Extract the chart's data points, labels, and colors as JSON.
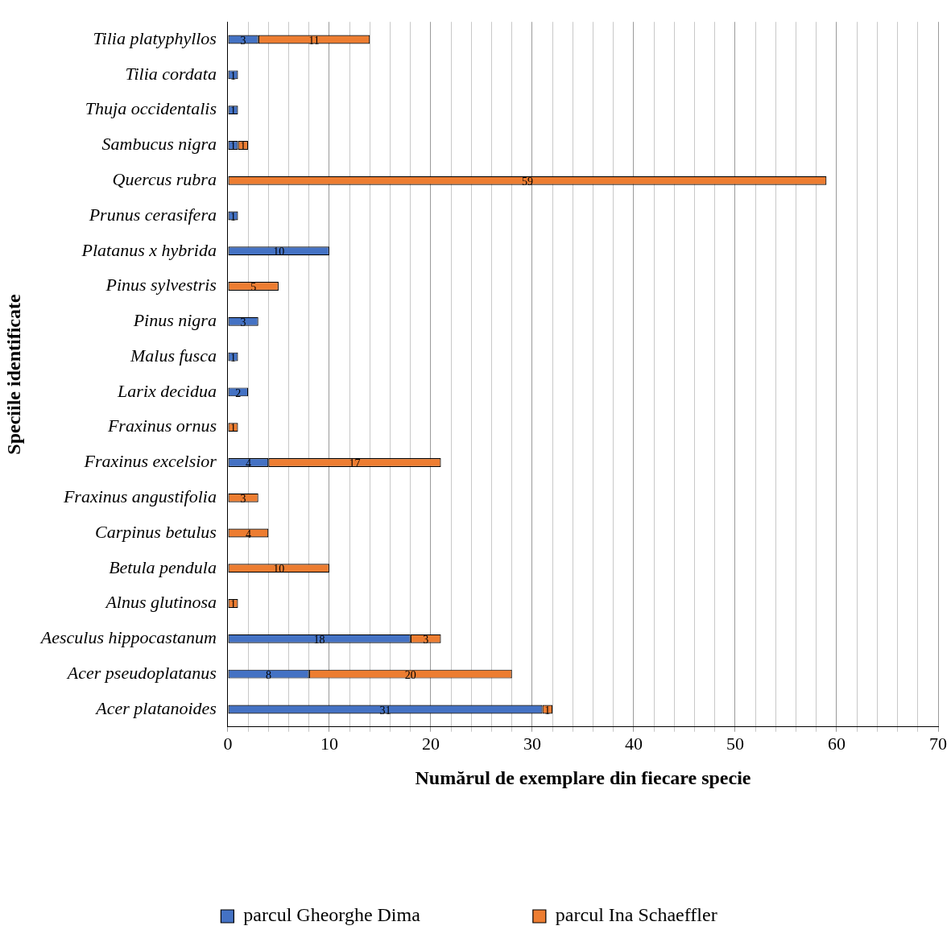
{
  "chart_data": {
    "type": "bar",
    "orientation": "horizontal",
    "stacked": true,
    "categories": [
      "Tilia platyphyllos",
      "Tilia cordata",
      "Thuja occidentalis",
      "Sambucus nigra",
      "Quercus rubra",
      "Prunus cerasifera",
      "Platanus x hybrida",
      "Pinus sylvestris",
      "Pinus nigra",
      "Malus fusca",
      "Larix decidua",
      "Fraxinus ornus",
      "Fraxinus excelsior",
      "Fraxinus angustifolia",
      "Carpinus betulus",
      "Betula pendula",
      "Alnus glutinosa",
      "Aesculus hippocastanum",
      "Acer pseudoplatanus",
      "Acer platanoides"
    ],
    "series": [
      {
        "name": "parcul Gheorghe Dima",
        "color": "#4472c4",
        "values": [
          3,
          1,
          1,
          1,
          null,
          1,
          10,
          null,
          3,
          1,
          2,
          null,
          4,
          null,
          null,
          null,
          null,
          18,
          8,
          31
        ]
      },
      {
        "name": "parcul Ina Schaeffler",
        "color": "#ed7d31",
        "values": [
          11,
          null,
          null,
          1,
          59,
          null,
          null,
          5,
          null,
          null,
          null,
          1,
          17,
          3,
          4,
          10,
          1,
          3,
          20,
          1
        ]
      }
    ],
    "xlabel": "Numărul de exemplare din fiecare specie",
    "ylabel": "Speciile identificate",
    "xlim": [
      0,
      70
    ],
    "xticks": [
      0,
      {
        "value": 2,
        "label": null
      },
      {
        "value": 4,
        "label": null
      },
      {
        "value": 6,
        "label": null
      },
      {
        "value": 8,
        "label": null
      },
      10,
      {
        "value": 12,
        "label": null
      },
      {
        "value": 14,
        "label": null
      },
      {
        "value": 16,
        "label": null
      },
      {
        "value": 18,
        "label": null
      },
      20,
      {
        "value": 22,
        "label": null
      },
      {
        "value": 24,
        "label": null
      },
      {
        "value": 26,
        "label": null
      },
      {
        "value": 28,
        "label": null
      },
      30,
      {
        "value": 32,
        "label": null
      },
      {
        "value": 34,
        "label": null
      },
      {
        "value": 36,
        "label": null
      },
      {
        "value": 38,
        "label": null
      },
      40,
      {
        "value": 42,
        "label": null
      },
      {
        "value": 44,
        "label": null
      },
      {
        "value": 46,
        "label": null
      },
      {
        "value": 48,
        "label": null
      },
      50,
      {
        "value": 52,
        "label": null
      },
      {
        "value": 54,
        "label": null
      },
      {
        "value": 56,
        "label": null
      },
      {
        "value": 58,
        "label": null
      },
      60,
      {
        "value": 62,
        "label": null
      },
      {
        "value": 64,
        "label": null
      },
      {
        "value": 66,
        "label": null
      },
      {
        "value": 68,
        "label": null
      },
      70
    ],
    "grid": "x",
    "legend": "bottom",
    "data_labels": true
  }
}
